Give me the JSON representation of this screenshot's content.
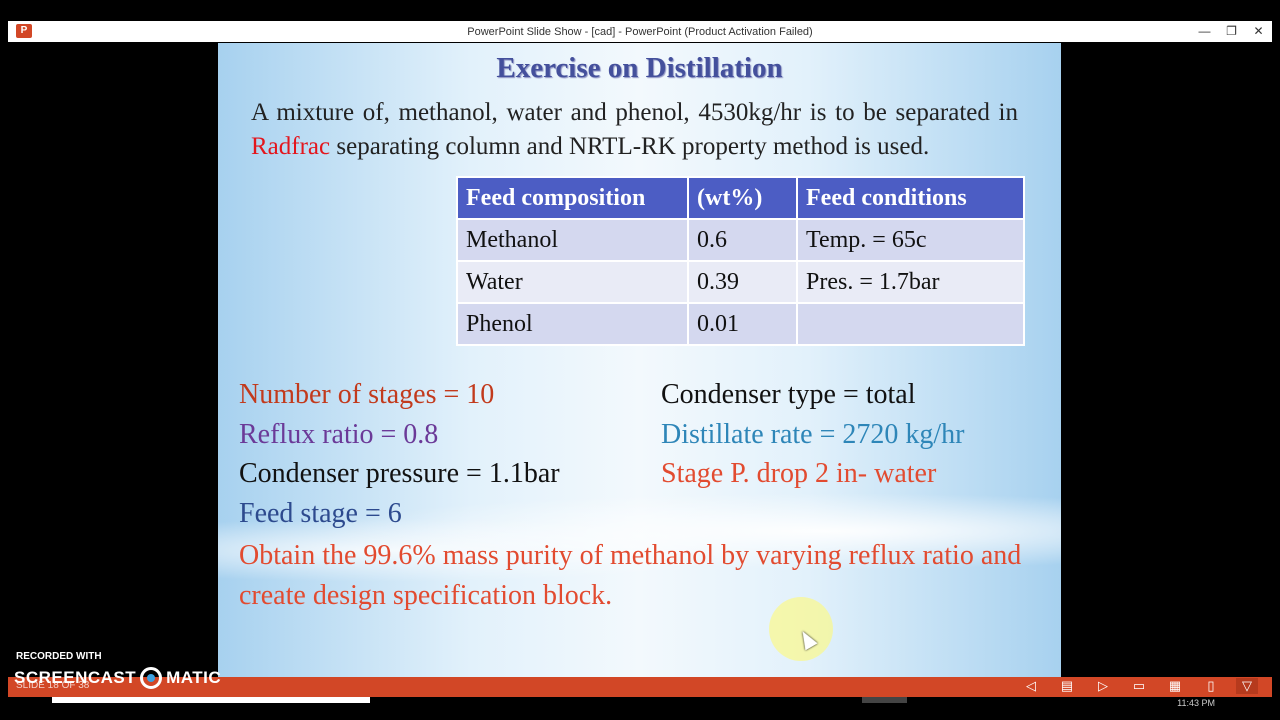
{
  "window": {
    "app_icon": "P",
    "title": "PowerPoint Slide Show - [cad] - PowerPoint (Product Activation Failed)",
    "minimize": "—",
    "restore": "❐",
    "close": "✕"
  },
  "slide": {
    "title": "Exercise on Distillation",
    "intro_before": "A mixture of, methanol, water and phenol, 4530kg/hr  is to be separated in ",
    "intro_highlight": "Radfrac",
    "intro_after": " separating column and NRTL-RK property method is used.",
    "table": {
      "headers": [
        "Feed composition",
        "(wt%)",
        "Feed conditions"
      ],
      "rows": [
        [
          "Methanol",
          "0.6",
          "Temp. = 65c"
        ],
        [
          "Water",
          "0.39",
          "Pres. = 1.7bar"
        ],
        [
          "Phenol",
          "0.01",
          ""
        ]
      ]
    },
    "params": {
      "stages": "Number of stages = 10",
      "reflux": "Reflux ratio = 0.8",
      "cond_pressure": "Condenser pressure = 1.1bar",
      "feed_stage": "Feed stage = 6",
      "cond_type": "Condenser type = total",
      "distillate": "Distillate rate = 2720 kg/hr",
      "pdrop": "Stage P. drop 2 in- water"
    },
    "objective": "Obtain the 99.6% mass purity of methanol by varying reflux ratio and create design specification block."
  },
  "colors": {
    "title": "#44509c",
    "table_header": "#4c5dc4",
    "stages": "#c23a1c",
    "reflux": "#6b3a98",
    "feed_stage": "#2d4a8e",
    "distillate": "#2e86b8",
    "pdrop": "#e24b30",
    "status_bar": "#d24726"
  },
  "status_bar": {
    "slide_info": "SLIDE 18 OF 38",
    "icons": [
      "prev-icon",
      "notes-icon",
      "next-icon",
      "normal-view-icon",
      "slide-sorter-icon",
      "reading-view-icon",
      "slideshow-icon"
    ]
  },
  "watermark": {
    "recorded": "RECORDED WITH",
    "brand_left": "SCREENCAST",
    "brand_right": "MATIC"
  },
  "clock": "11:43 PM"
}
